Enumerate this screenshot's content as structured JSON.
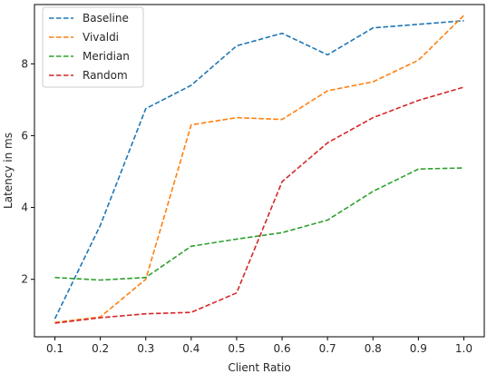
{
  "chart_data": {
    "type": "line",
    "title": "",
    "xlabel": "Client Ratio",
    "ylabel": "Latency in ms",
    "x": [
      0.1,
      0.2,
      0.3,
      0.4,
      0.5,
      0.6,
      0.7,
      0.8,
      0.9,
      1.0
    ],
    "x_ticks": [
      "0.1",
      "0.2",
      "0.3",
      "0.4",
      "0.5",
      "0.6",
      "0.7",
      "0.8",
      "0.9",
      "1.0"
    ],
    "y_ticks": [
      2,
      4,
      6,
      8
    ],
    "xlim": [
      0.055,
      1.045
    ],
    "ylim": [
      0.4,
      9.65
    ],
    "grid": false,
    "legend_position": "top-left",
    "line_style": "dashed",
    "series": [
      {
        "name": "Baseline",
        "color": "#1f77b4",
        "values": [
          0.9,
          3.5,
          6.75,
          7.4,
          8.5,
          8.85,
          8.25,
          9.0,
          9.1,
          9.2
        ]
      },
      {
        "name": "Vivaldi",
        "color": "#ff7f0e",
        "values": [
          0.8,
          0.95,
          2.0,
          6.3,
          6.5,
          6.45,
          7.25,
          7.5,
          8.1,
          9.35
        ]
      },
      {
        "name": "Meridian",
        "color": "#2ca02c",
        "values": [
          2.05,
          1.98,
          2.05,
          2.92,
          3.12,
          3.3,
          3.65,
          4.45,
          5.07,
          5.1
        ]
      },
      {
        "name": "Random",
        "color": "#d62728",
        "values": [
          0.78,
          0.93,
          1.04,
          1.08,
          1.62,
          4.72,
          5.8,
          6.5,
          6.98,
          7.35
        ]
      }
    ]
  }
}
